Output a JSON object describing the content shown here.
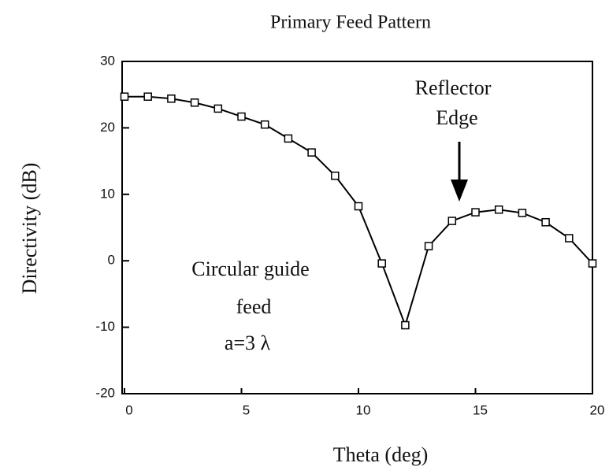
{
  "chart_data": {
    "type": "line",
    "title": "Primary Feed Pattern",
    "xlabel": "Theta (deg)",
    "ylabel": "Directivity (dB)",
    "annotations": [
      "Reflector",
      "Edge",
      "Circular guide",
      "feed",
      "a=3 λ"
    ],
    "x": [
      0,
      1,
      2,
      3,
      4,
      5,
      6,
      7,
      8,
      9,
      10,
      11,
      12,
      13,
      14,
      15,
      16,
      17,
      18,
      19,
      20
    ],
    "series": [
      {
        "name": "Directivity",
        "color": "#000000",
        "values": [
          24.7,
          24.7,
          24.4,
          23.8,
          22.9,
          21.7,
          20.5,
          18.4,
          16.3,
          12.8,
          8.2,
          -0.4,
          -9.7,
          2.2,
          6.0,
          7.3,
          7.7,
          7.2,
          5.8,
          3.4,
          -0.4
        ]
      }
    ],
    "xlim": [
      0,
      20
    ],
    "xticks": [
      0,
      5,
      10,
      15,
      20
    ],
    "ylim": [
      -20,
      30
    ],
    "yticks": [
      -20,
      -10,
      0,
      10,
      20,
      30
    ],
    "grid": false
  }
}
